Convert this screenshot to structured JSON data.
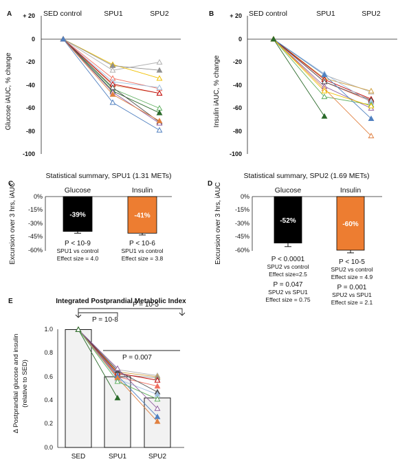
{
  "panels": {
    "A": {
      "letter": "A",
      "header_labels": [
        "SED control",
        "SPU1",
        "SPU2"
      ],
      "ylabel": "Glucose iAUC, % change",
      "yticks": [
        "+ 20",
        "0",
        "-20",
        "-40",
        "-60",
        "-80",
        "-100"
      ]
    },
    "B": {
      "letter": "B",
      "header_labels": [
        "SED control",
        "SPU1",
        "SPU2"
      ],
      "ylabel": "Insulin iAUC, % change",
      "yticks": [
        "+ 20",
        "0",
        "-20",
        "-40",
        "-60",
        "-80",
        "-100"
      ]
    },
    "C": {
      "letter": "C",
      "title": "Statistical summary, SPU1 (1.31 METs)",
      "ylabel": "Excursion over 3 hrs, iAUC",
      "yticks": [
        "0%",
        "-15%",
        "-30%",
        "-45%",
        "-60%"
      ],
      "bars": [
        {
          "label": "Glucose",
          "value_label": "-39%",
          "stats": [
            "P < 10-9",
            "SPU1 vs control",
            "Effect size = 4.0"
          ]
        },
        {
          "label": "Insulin",
          "value_label": "-41%",
          "stats": [
            "P < 10-6",
            "SPU1 vs control",
            "Effect size = 3.8"
          ]
        }
      ]
    },
    "D": {
      "letter": "D",
      "title": "Statistical summary, SPU2 (1.69 METs)",
      "ylabel": "Excursion over 3 hrs, iAUC",
      "yticks": [
        "0%",
        "-15%",
        "-30%",
        "-45%",
        "-60%"
      ],
      "bars": [
        {
          "label": "Glucose",
          "value_label": "-52%",
          "stats": [
            "P < 0.0001",
            "SPU2 vs control",
            "Effect size=2.5"
          ],
          "stats2": [
            "P = 0.047",
            "SPU2 vs SPU1",
            "Effect size = 0.75"
          ]
        },
        {
          "label": "Insulin",
          "value_label": "-60%",
          "stats": [
            "P < 10-5",
            "SPU2 vs control",
            "Effect size = 4.9"
          ],
          "stats2": [
            "P = 0.001",
            "SPU2 vs SPU1",
            "Effect size = 2.1"
          ]
        }
      ]
    },
    "E": {
      "letter": "E",
      "title": "Integrated Postprandial Metabolic Index",
      "ylabel": "Δ Postprandial glucose and insulin",
      "ylabel2": "(relative to SED)",
      "yticks": [
        "0.0",
        "0.2",
        "0.4",
        "0.6",
        "0.8",
        "1.0"
      ],
      "categories": [
        "SED",
        "SPU1",
        "SPU2"
      ],
      "brackets": [
        "P = 10-8",
        "P = 10-5",
        "P = 0.007"
      ]
    }
  },
  "chart_data": [
    {
      "panel": "A",
      "type": "line",
      "ylabel": "Glucose iAUC, % change",
      "categories": [
        "SED control",
        "SPU1",
        "SPU2"
      ],
      "ylim": [
        -100,
        20
      ],
      "series": [
        {
          "color": "#b0b0b0",
          "values": [
            0,
            -27,
            -20
          ]
        },
        {
          "color": "#f0c000",
          "values": [
            0,
            -22,
            -34
          ]
        },
        {
          "color": "#909090",
          "values": [
            0,
            -23,
            -27
          ]
        },
        {
          "color": "#f07060",
          "values": [
            0,
            -34,
            -43
          ]
        },
        {
          "color": "#a0c0e0",
          "values": [
            0,
            -37,
            -42
          ]
        },
        {
          "color": "#e0a070",
          "values": [
            0,
            -40,
            -47
          ]
        },
        {
          "color": "#c00000",
          "values": [
            0,
            -39,
            -47
          ]
        },
        {
          "color": "#60b060",
          "values": [
            0,
            -43,
            -60
          ]
        },
        {
          "color": "#2a6a2a",
          "values": [
            0,
            -45,
            -64
          ]
        },
        {
          "color": "#505050",
          "values": [
            0,
            -42,
            -72
          ]
        },
        {
          "color": "#9060a0",
          "values": [
            0,
            -46,
            -73
          ]
        },
        {
          "color": "#e08040",
          "values": [
            0,
            -48,
            -71
          ]
        },
        {
          "color": "#5080c0",
          "values": [
            0,
            -55,
            -79
          ]
        }
      ]
    },
    {
      "panel": "B",
      "type": "line",
      "ylabel": "Insulin iAUC, % change",
      "categories": [
        "SED control",
        "SPU1",
        "SPU2"
      ],
      "ylim": [
        -100,
        20
      ],
      "series": [
        {
          "color": "#b0b0b0",
          "values": [
            0,
            -31,
            -46
          ]
        },
        {
          "color": "#d0a040",
          "values": [
            0,
            -34,
            -45
          ]
        },
        {
          "color": "#f07060",
          "values": [
            0,
            -37,
            -54
          ]
        },
        {
          "color": "#c00000",
          "values": [
            0,
            -35,
            -52
          ]
        },
        {
          "color": "#505050",
          "values": [
            0,
            -37,
            -53
          ]
        },
        {
          "color": "#a0c0e0",
          "values": [
            0,
            -30,
            -55
          ]
        },
        {
          "color": "#9060a0",
          "values": [
            0,
            -41,
            -60
          ]
        },
        {
          "color": "#60b060",
          "values": [
            0,
            -50,
            -57
          ]
        },
        {
          "color": "#5080c0",
          "values": [
            0,
            -31,
            -69
          ]
        },
        {
          "color": "#e08040",
          "values": [
            0,
            -43,
            -84
          ]
        },
        {
          "color": "#f0c000",
          "values": [
            0,
            -45,
            -58
          ]
        },
        {
          "color": "#2a6a2a",
          "values": [
            0,
            -67,
            null
          ]
        }
      ]
    },
    {
      "panel": "C",
      "type": "bar",
      "title": "Statistical summary, SPU1 (1.31 METs)",
      "ylabel": "Excursion over 3 hrs, iAUC",
      "categories": [
        "Glucose",
        "Insulin"
      ],
      "values": [
        -39,
        -41
      ],
      "ylim": [
        -60,
        0
      ],
      "colors": [
        "#000000",
        "#ed7d31"
      ]
    },
    {
      "panel": "D",
      "type": "bar",
      "title": "Statistical summary, SPU2 (1.69 METs)",
      "ylabel": "Excursion over 3 hrs, iAUC",
      "categories": [
        "Glucose",
        "Insulin"
      ],
      "values": [
        -52,
        -60
      ],
      "ylim": [
        -60,
        0
      ],
      "colors": [
        "#000000",
        "#ed7d31"
      ]
    },
    {
      "panel": "E",
      "type": "bar",
      "title": "Integrated Postprandial Metabolic Index",
      "ylabel": "Δ Postprandial glucose and insulin (relative to SED)",
      "categories": [
        "SED",
        "SPU1",
        "SPU2"
      ],
      "values": [
        1.0,
        0.6,
        0.42
      ],
      "ylim": [
        0,
        1.0
      ],
      "series": [
        {
          "color": "#b0b0b0",
          "values": [
            1.0,
            0.66,
            0.61
          ]
        },
        {
          "color": "#d0a040",
          "values": [
            1.0,
            0.64,
            0.6
          ]
        },
        {
          "color": "#909090",
          "values": [
            1.0,
            0.62,
            0.59
          ]
        },
        {
          "color": "#f07060",
          "values": [
            1.0,
            0.6,
            0.52
          ]
        },
        {
          "color": "#c00000",
          "values": [
            1.0,
            0.63,
            0.57
          ]
        },
        {
          "color": "#505050",
          "values": [
            1.0,
            0.65,
            0.47
          ]
        },
        {
          "color": "#a0c0e0",
          "values": [
            1.0,
            0.58,
            0.45
          ]
        },
        {
          "color": "#9060a0",
          "values": [
            1.0,
            0.67,
            0.33
          ]
        },
        {
          "color": "#5080c0",
          "values": [
            1.0,
            0.61,
            0.26
          ]
        },
        {
          "color": "#e08040",
          "values": [
            1.0,
            0.59,
            0.22
          ]
        },
        {
          "color": "#60b060",
          "values": [
            1.0,
            0.56,
            0.41
          ]
        },
        {
          "color": "#2a6a2a",
          "values": [
            1.0,
            0.42,
            null
          ]
        }
      ]
    }
  ]
}
